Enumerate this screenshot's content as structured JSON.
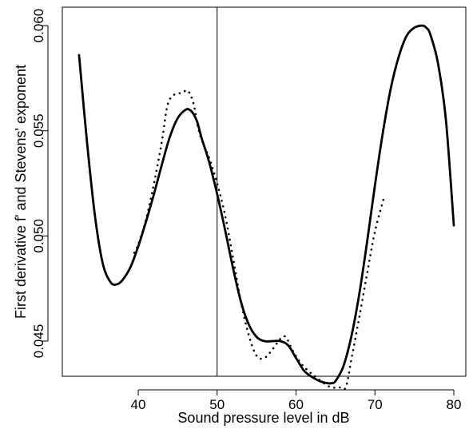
{
  "chart_data": {
    "type": "line",
    "title": "",
    "xlabel": "Sound pressure level in dB",
    "ylabel": "First derivative f' and Stevens' exponent",
    "xlim": [
      31,
      81.5
    ],
    "ylim": [
      0.0426,
      0.0605
    ],
    "xticks": [
      40,
      50,
      60,
      70,
      80
    ],
    "xtick_labels": [
      "40",
      "50",
      "60",
      "70",
      "80"
    ],
    "yticks": [
      0.045,
      0.05,
      0.055,
      0.06
    ],
    "ytick_labels": [
      "0.045",
      "0.050",
      "0.055",
      "0.060"
    ],
    "grid": false,
    "legend": "none",
    "vline_x": 50,
    "series": [
      {
        "style": "solid",
        "color": "#000000",
        "x": [
          32.5,
          33.5,
          34.5,
          35.5,
          36.5,
          37.3,
          38,
          39,
          40,
          41,
          42,
          43,
          44,
          45,
          46,
          46.5,
          47,
          47.5,
          48,
          49,
          50,
          51,
          52,
          53,
          54,
          55,
          56,
          57,
          58,
          59,
          60,
          61,
          62,
          63,
          64,
          64.5,
          65,
          66,
          67,
          68,
          69,
          70,
          71,
          72,
          73,
          74,
          75,
          76,
          76.5,
          77,
          78,
          79,
          80
        ],
        "y": [
          0.0586,
          0.0545,
          0.051,
          0.0487,
          0.0478,
          0.0477,
          0.0479,
          0.0485,
          0.0495,
          0.0507,
          0.052,
          0.0534,
          0.0547,
          0.0556,
          0.056,
          0.056,
          0.0558,
          0.0554,
          0.0547,
          0.0535,
          0.052,
          0.0503,
          0.0485,
          0.0469,
          0.0458,
          0.0452,
          0.045,
          0.045,
          0.045,
          0.0448,
          0.0442,
          0.0436,
          0.0433,
          0.0431,
          0.043,
          0.043,
          0.0431,
          0.0438,
          0.0452,
          0.0472,
          0.0497,
          0.0524,
          0.0549,
          0.057,
          0.0585,
          0.0595,
          0.0599,
          0.06,
          0.0599,
          0.0596,
          0.0582,
          0.0555,
          0.0505
        ]
      },
      {
        "style": "dotted",
        "color": "#000000",
        "x": [
          39.5,
          40,
          41,
          42,
          43,
          43.7,
          44.5,
          45.5,
          46.3,
          47,
          47.5,
          48,
          49,
          50,
          51,
          52,
          53,
          54,
          55,
          56,
          57,
          58,
          58.7,
          59.5,
          60.5,
          61.5,
          62.5,
          63.5,
          64.5,
          65.5,
          66.3,
          67,
          68,
          69,
          70,
          71.2
        ],
        "y": [
          0.0492,
          0.0496,
          0.0508,
          0.0525,
          0.0545,
          0.0562,
          0.0567,
          0.0568,
          0.0569,
          0.0563,
          0.0553,
          0.0546,
          0.0537,
          0.0525,
          0.051,
          0.049,
          0.0469,
          0.0453,
          0.0443,
          0.0442,
          0.0446,
          0.0451,
          0.0452,
          0.0446,
          0.044,
          0.0436,
          0.0433,
          0.043,
          0.0428,
          0.0428,
          0.0428,
          0.0441,
          0.0461,
          0.0482,
          0.0502,
          0.0519
        ]
      }
    ]
  }
}
